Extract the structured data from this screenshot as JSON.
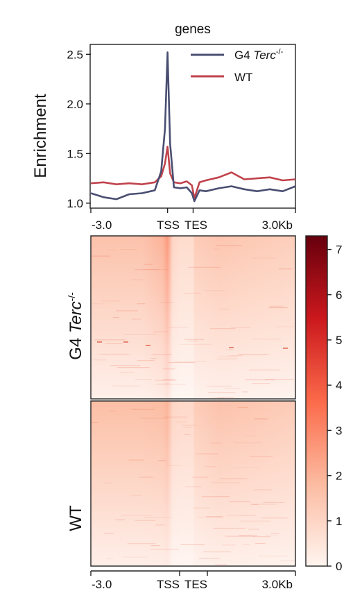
{
  "chart_data": [
    {
      "type": "line",
      "title": "genes",
      "ylabel": "Enrichment",
      "xlabel": "",
      "x_ticks": [
        "-3.0",
        "TSS",
        "TES",
        "3.0Kb"
      ],
      "ylim": [
        0.95,
        2.6
      ],
      "y_ticks": [
        "1.0",
        "1.5",
        "2.0",
        "2.5"
      ],
      "legend_position": "top-right",
      "x": [
        -3.0,
        -2.5,
        -2.0,
        -1.5,
        -1.0,
        -0.5,
        -0.25,
        -0.1,
        0.0,
        0.1,
        0.25,
        0.5,
        0.75,
        0.95,
        1.05,
        1.25,
        1.5,
        2.0,
        2.5,
        3.0,
        3.5,
        4.0,
        4.5,
        5.0
      ],
      "series": [
        {
          "name": "G4 Terc-/-",
          "color": "#4a4e72",
          "values": [
            1.1,
            1.06,
            1.04,
            1.09,
            1.1,
            1.13,
            1.32,
            1.75,
            2.52,
            1.6,
            1.16,
            1.15,
            1.16,
            1.1,
            1.02,
            1.13,
            1.12,
            1.15,
            1.17,
            1.14,
            1.12,
            1.14,
            1.12,
            1.17
          ]
        },
        {
          "name": "WT",
          "color": "#c0434c",
          "values": [
            1.2,
            1.21,
            1.19,
            1.2,
            1.19,
            1.21,
            1.27,
            1.4,
            1.57,
            1.3,
            1.21,
            1.2,
            1.22,
            1.18,
            1.05,
            1.21,
            1.23,
            1.26,
            1.31,
            1.24,
            1.25,
            1.26,
            1.23,
            1.24
          ]
        }
      ]
    },
    {
      "type": "heatmap",
      "row_labels": [
        "G4 Terc-/-",
        "WT"
      ],
      "x_ticks": [
        "-3.0",
        "TSS",
        "TES",
        "3.0Kb"
      ],
      "colorbar": {
        "min": 0,
        "max": 7.3,
        "ticks": [
          "0",
          "1",
          "2",
          "3",
          "4",
          "5",
          "6",
          "7"
        ],
        "colors": [
          "#fff5f0",
          "#fcbba1",
          "#fb6a4a",
          "#cb181d",
          "#67000d"
        ]
      },
      "column_profiles": {
        "G4 Terc-/-": {
          "x": [
            -3.0,
            -1.0,
            -0.2,
            0.0,
            0.2,
            0.5,
            1.0,
            1.05,
            2.0,
            3.0,
            5.0
          ],
          "values": [
            1.6,
            1.6,
            2.0,
            2.6,
            1.0,
            0.8,
            0.8,
            1.3,
            1.5,
            1.4,
            1.2
          ]
        },
        "WT": {
          "x": [
            -3.0,
            -1.0,
            -0.2,
            0.0,
            0.2,
            0.5,
            1.0,
            1.05,
            2.0,
            3.0,
            5.0
          ],
          "values": [
            1.7,
            1.7,
            1.8,
            2.0,
            1.0,
            0.9,
            0.9,
            1.3,
            1.6,
            1.5,
            1.3
          ]
        }
      }
    }
  ]
}
